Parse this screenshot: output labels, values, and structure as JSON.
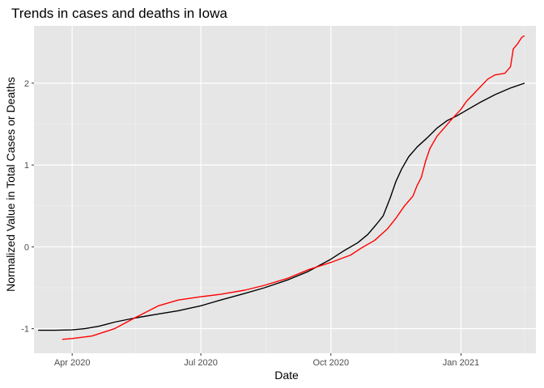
{
  "chart_data": {
    "type": "line",
    "title": "Trends in cases and deaths in Iowa",
    "xlabel": "Date",
    "ylabel": "Normalized Value in Total Cases or Deaths",
    "x_axis_type": "date",
    "xlim": [
      "2020-03-05",
      "2021-02-23"
    ],
    "ylim": [
      -1.3,
      2.7
    ],
    "x_ticks": [
      {
        "date": "2020-04-01",
        "label": "Apr 2020"
      },
      {
        "date": "2020-07-01",
        "label": "Jul 2020"
      },
      {
        "date": "2020-10-01",
        "label": "Oct 2020"
      },
      {
        "date": "2021-01-01",
        "label": "Jan 2021"
      }
    ],
    "x_minor_ticks": [
      "2020-05-16",
      "2020-08-16",
      "2020-11-16",
      "2021-02-15"
    ],
    "y_ticks": [
      -1,
      0,
      1,
      2
    ],
    "y_minor_ticks": [
      -0.5,
      0.5,
      1.5
    ],
    "grid": true,
    "background": "#e6e6e6",
    "legend": "none",
    "series": [
      {
        "color": "#000000",
        "points": [
          [
            "2020-03-08",
            -1.02
          ],
          [
            "2020-03-20",
            -1.02
          ],
          [
            "2020-04-01",
            -1.015
          ],
          [
            "2020-04-10",
            -1.0
          ],
          [
            "2020-04-20",
            -0.97
          ],
          [
            "2020-05-01",
            -0.92
          ],
          [
            "2020-05-15",
            -0.87
          ],
          [
            "2020-06-01",
            -0.82
          ],
          [
            "2020-06-15",
            -0.78
          ],
          [
            "2020-07-01",
            -0.72
          ],
          [
            "2020-07-15",
            -0.65
          ],
          [
            "2020-08-01",
            -0.57
          ],
          [
            "2020-08-15",
            -0.5
          ],
          [
            "2020-09-01",
            -0.4
          ],
          [
            "2020-09-15",
            -0.3
          ],
          [
            "2020-10-01",
            -0.15
          ],
          [
            "2020-10-10",
            -0.05
          ],
          [
            "2020-10-20",
            0.05
          ],
          [
            "2020-10-27",
            0.15
          ],
          [
            "2020-11-02",
            0.27
          ],
          [
            "2020-11-07",
            0.38
          ],
          [
            "2020-11-12",
            0.6
          ],
          [
            "2020-11-16",
            0.8
          ],
          [
            "2020-11-20",
            0.95
          ],
          [
            "2020-11-25",
            1.1
          ],
          [
            "2020-12-01",
            1.22
          ],
          [
            "2020-12-08",
            1.33
          ],
          [
            "2020-12-15",
            1.45
          ],
          [
            "2020-12-22",
            1.54
          ],
          [
            "2020-12-29",
            1.6
          ],
          [
            "2021-01-05",
            1.67
          ],
          [
            "2021-01-15",
            1.77
          ],
          [
            "2021-01-25",
            1.86
          ],
          [
            "2021-02-05",
            1.94
          ],
          [
            "2021-02-15",
            2.0
          ]
        ]
      },
      {
        "color": "#ff0000",
        "points": [
          [
            "2020-03-25",
            -1.13
          ],
          [
            "2020-04-01",
            -1.12
          ],
          [
            "2020-04-15",
            -1.09
          ],
          [
            "2020-05-01",
            -1.0
          ],
          [
            "2020-05-15",
            -0.87
          ],
          [
            "2020-06-01",
            -0.72
          ],
          [
            "2020-06-15",
            -0.65
          ],
          [
            "2020-07-01",
            -0.61
          ],
          [
            "2020-07-15",
            -0.58
          ],
          [
            "2020-08-01",
            -0.53
          ],
          [
            "2020-08-15",
            -0.47
          ],
          [
            "2020-09-01",
            -0.38
          ],
          [
            "2020-09-15",
            -0.28
          ],
          [
            "2020-10-01",
            -0.19
          ],
          [
            "2020-10-15",
            -0.1
          ],
          [
            "2020-10-22",
            -0.02
          ],
          [
            "2020-11-01",
            0.08
          ],
          [
            "2020-11-10",
            0.22
          ],
          [
            "2020-11-16",
            0.35
          ],
          [
            "2020-11-22",
            0.5
          ],
          [
            "2020-11-28",
            0.62
          ],
          [
            "2020-12-01",
            0.75
          ],
          [
            "2020-12-04",
            0.85
          ],
          [
            "2020-12-07",
            1.05
          ],
          [
            "2020-12-10",
            1.2
          ],
          [
            "2020-12-15",
            1.35
          ],
          [
            "2020-12-20",
            1.45
          ],
          [
            "2020-12-25",
            1.55
          ],
          [
            "2021-01-01",
            1.68
          ],
          [
            "2021-01-05",
            1.78
          ],
          [
            "2021-01-10",
            1.87
          ],
          [
            "2021-01-15",
            1.96
          ],
          [
            "2021-01-20",
            2.05
          ],
          [
            "2021-01-25",
            2.1
          ],
          [
            "2021-02-01",
            2.12
          ],
          [
            "2021-02-05",
            2.2
          ],
          [
            "2021-02-07",
            2.42
          ],
          [
            "2021-02-10",
            2.48
          ],
          [
            "2021-02-13",
            2.56
          ],
          [
            "2021-02-15",
            2.58
          ]
        ]
      }
    ]
  }
}
